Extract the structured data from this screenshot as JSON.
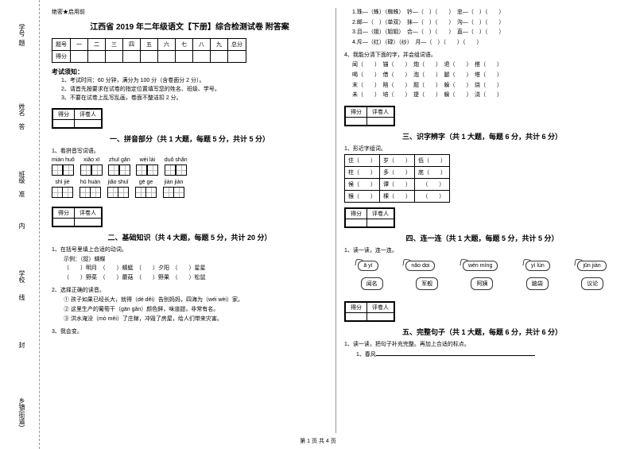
{
  "side": {
    "l1": "学号",
    "l2": "姓名",
    "l3": "班级",
    "l4": "学校",
    "l5": "乡镇(街道)",
    "c1": "题",
    "c2": "答",
    "c3": "准",
    "c4": "不",
    "c5": "内",
    "c6": "线",
    "c7": "封"
  },
  "header": {
    "secret": "绝密★启用前",
    "title": "江西省 2019 年二年级语文【下册】综合检测试卷 附答案"
  },
  "scoreTable": {
    "r1": [
      "题号",
      "一",
      "二",
      "三",
      "四",
      "五",
      "六",
      "七",
      "八",
      "九",
      "总分"
    ],
    "r2": [
      "得分",
      "",
      "",
      "",
      "",
      "",
      "",
      "",
      "",
      "",
      ""
    ]
  },
  "notice": {
    "title": "考试须知：",
    "items": [
      "1、考试时间：60 分钟，满分为 100 分（含卷面分 2 分）。",
      "2、请首先按要求在试卷的指定位置填写您的姓名、班级、学号。",
      "3、不要在试卷上乱写乱画，卷面不整洁扣 2 分。"
    ]
  },
  "scoreBox": {
    "c1": "得分",
    "c2": "评卷人"
  },
  "sec1": {
    "title": "一、拼音部分（共 1 大题，每题 5 分，共计 5 分）",
    "q1": "1、看拼音写词语。",
    "row1": [
      "miàn huǒ",
      "xiǎo xī",
      "zhuī gǎn",
      "wèi lái",
      "duǒ shǎn"
    ],
    "row2": [
      "shì jiè",
      "hū huàn",
      "jiǎo shuǐ",
      "gē ge",
      "jiàn jiàn"
    ]
  },
  "sec2": {
    "title": "二、基础知识（共 4 大题，每题 5 分，共计 20 分）",
    "q1": "1、在括号里填上合适的动词。",
    "ex": "示例：（捉）蝴蝶",
    "opts1": [
      "（　　）明月",
      "（　　）蜻蜓",
      "（　　）夕阳",
      "（　　）星星"
    ],
    "opts2": [
      "（　　）野菜",
      "（　　）蘑菇",
      "（　　）野果",
      "（　　）松鼠"
    ],
    "q2": "2、选择正确的读音。",
    "s1": "① 孩子如果已经长大，就得（dé  děi）告别妈妈，四海为（wéi  wèi）家。",
    "s2": "② 这里生产的葡萄干（gān  gǎn）颜色鲜，味道甜，非常有名。",
    "s3": "③ 洪水淹没（mò  méi）了庄稼，冲毁了房屋，给人们带来灾害。",
    "q3": "3、我会变。"
  },
  "right": {
    "line1": "1.珠—（蛛）（蜘蛛）　钤—（　）（　　）　忠—（　）（　　）",
    "line2": "2.邮—（　）（单双）　抹—（　）（　　）　沟—（　）（　　）",
    "line3": "3.且—（姐）（姐姐）　合—（　）（　　）　直—（　）（　　）",
    "line4": "4.斥—（红）（碌）（纱）　月—（　）（　　）（　　）",
    "q4": "4、我能分清下面的字，并会组词语。",
    "wrows": [
      [
        "闻（　　）",
        "锚（　　）",
        "炮（　　）",
        "退（　　）",
        "搭（　　）"
      ],
      [
        "喝（　　）",
        "借（　　）",
        "泡（　　）",
        "腿（　　）",
        "塔（　　）"
      ],
      [
        "末（　　）",
        "陪（　　）",
        "题（　　）",
        "躲（　　）",
        "烧（　　）"
      ],
      [
        "未（　　）",
        "培（　　）",
        "提（　　）",
        "躲（　　）",
        "浇（　　）"
      ]
    ]
  },
  "sec3": {
    "title": "三、识字辨字（共 1 大题，每题 6 分，共计 6 分）",
    "q1": "1、形近字组词。",
    "rows": [
      [
        "住（　　）",
        "岁（　　）",
        "低（　　）"
      ],
      [
        "柱（　　）",
        "多（　　）",
        "底（　　）"
      ],
      [
        "候（　　）",
        "谭（　　）",
        "　（　　）"
      ],
      [
        "猴（　　）",
        "棵（　　）",
        "　（　　）"
      ]
    ]
  },
  "sec4": {
    "title": "四、连一连（共 1 大题，每题 5 分，共计 5 分）",
    "q1": "1、读一读，连一连。",
    "top": [
      "ā yí",
      "nǎo dɑi",
      "wén míng",
      "yì lùn",
      "jūn jiàn"
    ],
    "bottom": [
      "闻名",
      "军舰",
      "阿姨",
      "脑袋",
      "议论"
    ]
  },
  "sec5": {
    "title": "五、完整句子（共 1 大题，每题 6 分，共计 6 分）",
    "q1": "1、读一读，把句子补充完整。再加上合适的标点。",
    "s1": "1、春风"
  },
  "footer": "第 1 页 共 4 页"
}
